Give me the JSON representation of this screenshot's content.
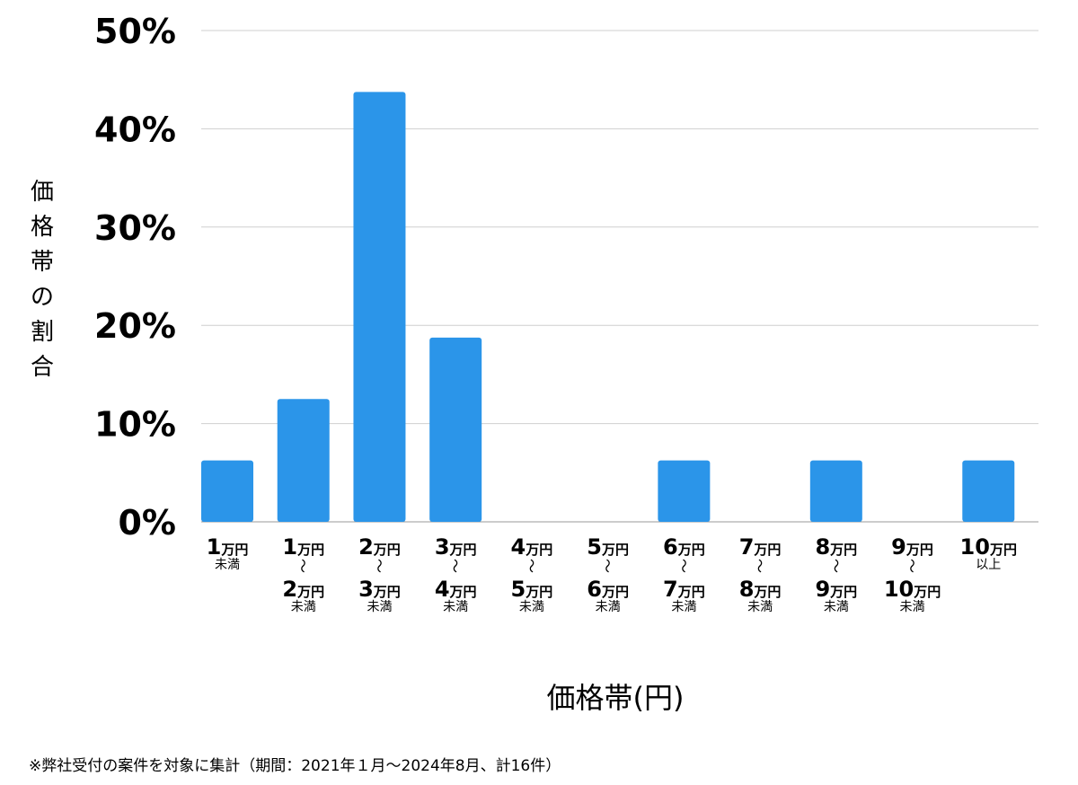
{
  "chart_data": {
    "type": "bar",
    "ylabel": "価格帯の割合",
    "xlabel": "価格帯(円)",
    "ylim": [
      0,
      50
    ],
    "yticks": [
      0,
      10,
      20,
      30,
      40,
      50
    ],
    "ytick_suffix": "%",
    "grid": true,
    "bar_color": "#2b95e9",
    "grid_color": "#cfcfcf",
    "categories": [
      {
        "label": "1万円未満",
        "lines": [
          {
            "n": "1",
            "u": "万円"
          },
          {
            "s": "未満"
          }
        ]
      },
      {
        "label": "1万円〜2万円未満",
        "lines": [
          {
            "n": "1",
            "u": "万円"
          },
          {
            "t": "〜"
          },
          {
            "n": "2",
            "u": "万円"
          },
          {
            "s": "未満"
          }
        ]
      },
      {
        "label": "2万円〜3万円未満",
        "lines": [
          {
            "n": "2",
            "u": "万円"
          },
          {
            "t": "〜"
          },
          {
            "n": "3",
            "u": "万円"
          },
          {
            "s": "未満"
          }
        ]
      },
      {
        "label": "3万円〜4万円未満",
        "lines": [
          {
            "n": "3",
            "u": "万円"
          },
          {
            "t": "〜"
          },
          {
            "n": "4",
            "u": "万円"
          },
          {
            "s": "未満"
          }
        ]
      },
      {
        "label": "4万円〜5万円未満",
        "lines": [
          {
            "n": "4",
            "u": "万円"
          },
          {
            "t": "〜"
          },
          {
            "n": "5",
            "u": "万円"
          },
          {
            "s": "未満"
          }
        ]
      },
      {
        "label": "5万円〜6万円未満",
        "lines": [
          {
            "n": "5",
            "u": "万円"
          },
          {
            "t": "〜"
          },
          {
            "n": "6",
            "u": "万円"
          },
          {
            "s": "未満"
          }
        ]
      },
      {
        "label": "6万円〜7万円未満",
        "lines": [
          {
            "n": "6",
            "u": "万円"
          },
          {
            "t": "〜"
          },
          {
            "n": "7",
            "u": "万円"
          },
          {
            "s": "未満"
          }
        ]
      },
      {
        "label": "7万円〜8万円未満",
        "lines": [
          {
            "n": "7",
            "u": "万円"
          },
          {
            "t": "〜"
          },
          {
            "n": "8",
            "u": "万円"
          },
          {
            "s": "未満"
          }
        ]
      },
      {
        "label": "8万円〜9万円未満",
        "lines": [
          {
            "n": "8",
            "u": "万円"
          },
          {
            "t": "〜"
          },
          {
            "n": "9",
            "u": "万円"
          },
          {
            "s": "未満"
          }
        ]
      },
      {
        "label": "9万円〜10万円未満",
        "lines": [
          {
            "n": "9",
            "u": "万円"
          },
          {
            "t": "〜"
          },
          {
            "n": "10",
            "u": "万円"
          },
          {
            "s": "未満"
          }
        ]
      },
      {
        "label": "10万円以上",
        "lines": [
          {
            "n": "10",
            "u": "万円"
          },
          {
            "s": "以上"
          }
        ]
      }
    ],
    "values": [
      6.25,
      12.5,
      43.75,
      18.75,
      0,
      0,
      6.25,
      0,
      6.25,
      0,
      6.25
    ]
  },
  "footnote": "※弊社受付の案件を対象に集計（期間：2021年１月〜2024年8月、計16件）"
}
